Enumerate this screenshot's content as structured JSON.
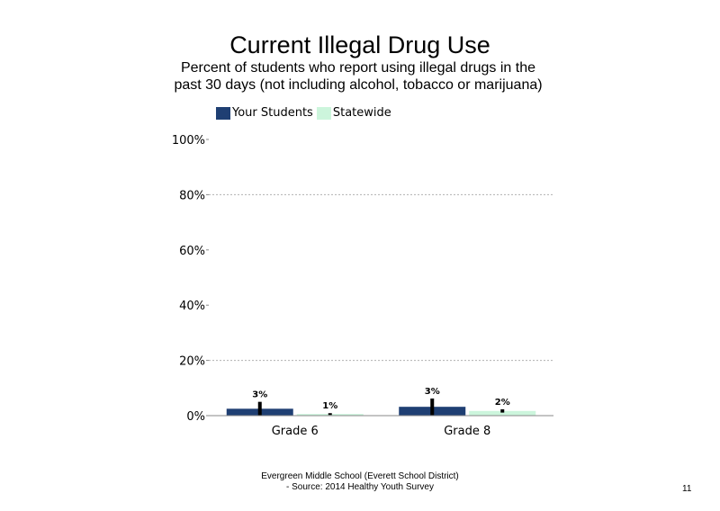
{
  "slide": {
    "footer_line1": "Evergreen Middle School (Everett School District)",
    "footer_line2": "- Source: 2014 Healthy  Youth Survey",
    "page_number": "11"
  },
  "colors": {
    "your_students": "#1f3f73",
    "statewide": "#ccf5dc",
    "gridline": "#b0b0b0",
    "error_bar": "#000000"
  },
  "chart_data": {
    "type": "bar",
    "title": "Current Illegal Drug Use",
    "subtitle": "Percent of students who report using illegal drugs in the past 30 days (not including alcohol, tobacco or marijuana)",
    "categories": [
      "Grade 6",
      "Grade 8"
    ],
    "series": [
      {
        "name": "Your Students",
        "values": [
          2.5,
          3.2
        ],
        "labels": [
          "3%",
          "3%"
        ],
        "error": [
          2.5,
          3.0
        ]
      },
      {
        "name": "Statewide",
        "values": [
          0.6,
          1.7
        ],
        "labels": [
          "1%",
          "2%"
        ],
        "error": [
          0.3,
          0.6
        ]
      }
    ],
    "ylim": [
      0,
      100
    ],
    "yticks": [
      0,
      20,
      40,
      60,
      80,
      100
    ],
    "ytick_labels": [
      "0%",
      "20%",
      "40%",
      "60%",
      "80%",
      "100%"
    ],
    "gridlines": [
      20,
      80
    ],
    "legend_position": "top-left",
    "xlabel": "",
    "ylabel": ""
  }
}
